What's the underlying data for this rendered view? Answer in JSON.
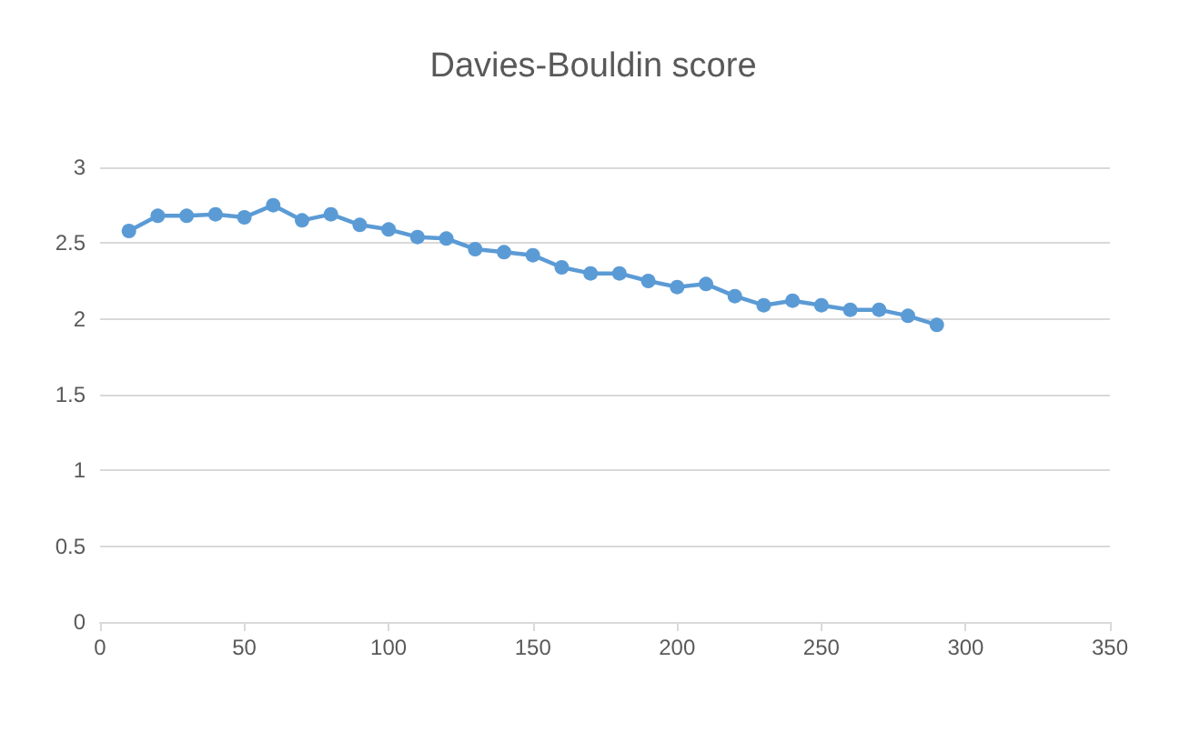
{
  "chart_data": {
    "type": "line",
    "title": "Davies-Bouldin score",
    "x": [
      10,
      20,
      30,
      40,
      50,
      60,
      70,
      80,
      90,
      100,
      110,
      120,
      130,
      140,
      150,
      160,
      170,
      180,
      190,
      200,
      210,
      220,
      230,
      240,
      250,
      260,
      270,
      280,
      290
    ],
    "series": [
      {
        "color": "#5b9bd5",
        "values": [
          2.58,
          2.68,
          2.68,
          2.69,
          2.67,
          2.75,
          2.65,
          2.69,
          2.62,
          2.59,
          2.54,
          2.53,
          2.46,
          2.44,
          2.42,
          2.34,
          2.3,
          2.3,
          2.25,
          2.21,
          2.23,
          2.15,
          2.09,
          2.12,
          2.09,
          2.06,
          2.06,
          2.02,
          1.96
        ]
      }
    ],
    "xlim": [
      0,
      350
    ],
    "xticks": [
      0,
      50,
      100,
      150,
      200,
      250,
      300,
      350
    ],
    "ylim": [
      0,
      3
    ],
    "yticks": [
      0,
      0.5,
      1,
      1.5,
      2,
      2.5,
      3
    ],
    "grid": "y",
    "marker": "circle",
    "line_style": "solid"
  }
}
